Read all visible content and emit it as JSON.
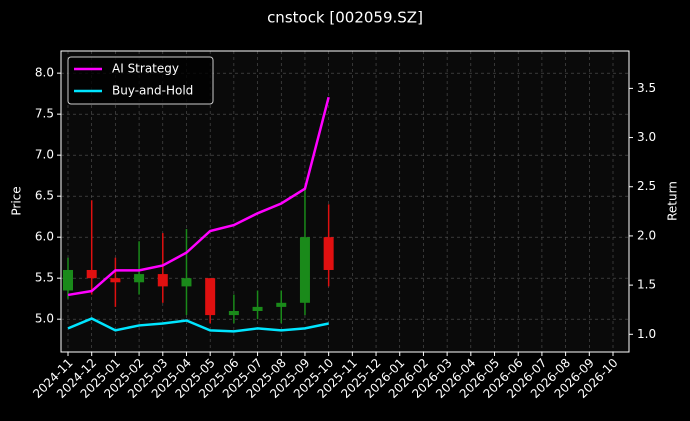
{
  "chart_data": {
    "type": "candlestick",
    "title": "cnstock [002059.SZ]",
    "ylabel": "Price",
    "y2label": "Return",
    "x": [
      "2024-11",
      "2024-12",
      "2025-01",
      "2025-02",
      "2025-03",
      "2025-04",
      "2025-05",
      "2025-06",
      "2025-07",
      "2025-08",
      "2025-09",
      "2025-10"
    ],
    "open": [
      5.35,
      5.6,
      5.5,
      5.45,
      5.55,
      5.4,
      5.5,
      5.05,
      5.1,
      5.15,
      5.2,
      6.0
    ],
    "high": [
      5.75,
      6.45,
      5.75,
      5.95,
      6.05,
      6.1,
      5.5,
      5.3,
      5.35,
      5.35,
      6.6,
      6.4
    ],
    "low": [
      5.25,
      5.3,
      5.15,
      5.3,
      5.2,
      5.05,
      4.95,
      4.95,
      5.0,
      4.95,
      5.05,
      5.4
    ],
    "close": [
      5.6,
      5.5,
      5.45,
      5.55,
      5.4,
      5.5,
      5.05,
      5.1,
      5.15,
      5.2,
      6.0,
      5.6
    ],
    "up_color": "#1a8a1a",
    "down_color": "#e01010",
    "series": [
      {
        "name": "AI Strategy",
        "color": "#ff00ff",
        "axis": "y2",
        "values": [
          1.4,
          1.44,
          1.65,
          1.65,
          1.7,
          1.83,
          2.05,
          2.11,
          2.23,
          2.33,
          2.48,
          3.41
        ]
      },
      {
        "name": "Buy-and-Hold",
        "color": "#00e5ff",
        "axis": "y2",
        "values": [
          1.06,
          1.16,
          1.04,
          1.09,
          1.11,
          1.14,
          1.04,
          1.03,
          1.06,
          1.04,
          1.06,
          1.11
        ]
      }
    ],
    "xlim": [
      "2024-11",
      "2026-10"
    ],
    "xticks": [
      "2024-11",
      "2024-12",
      "2025-01",
      "2025-02",
      "2025-03",
      "2025-04",
      "2025-05",
      "2025-06",
      "2025-07",
      "2025-08",
      "2025-09",
      "2025-10",
      "2025-11",
      "2025-12",
      "2026-01",
      "2026-02",
      "2026-03",
      "2026-04",
      "2026-05",
      "2026-06",
      "2026-07",
      "2026-08",
      "2026-09",
      "2026-10"
    ],
    "ylim": [
      4.6,
      8.27
    ],
    "yticks": [
      {
        "value": 5,
        "label": "5.0"
      },
      5.5,
      {
        "value": 6,
        "label": "6.0"
      },
      6.5,
      {
        "value": 7,
        "label": "7.0"
      },
      7.5,
      {
        "value": 8,
        "label": "8.0"
      }
    ],
    "y2lim": [
      0.82,
      3.88
    ],
    "y2ticks": [
      {
        "value": 1,
        "label": "1.0"
      },
      1.5,
      {
        "value": 2,
        "label": "2.0"
      },
      2.5,
      {
        "value": 3,
        "label": "3.0"
      },
      3.5
    ],
    "grid": true,
    "legend": "upper left"
  }
}
